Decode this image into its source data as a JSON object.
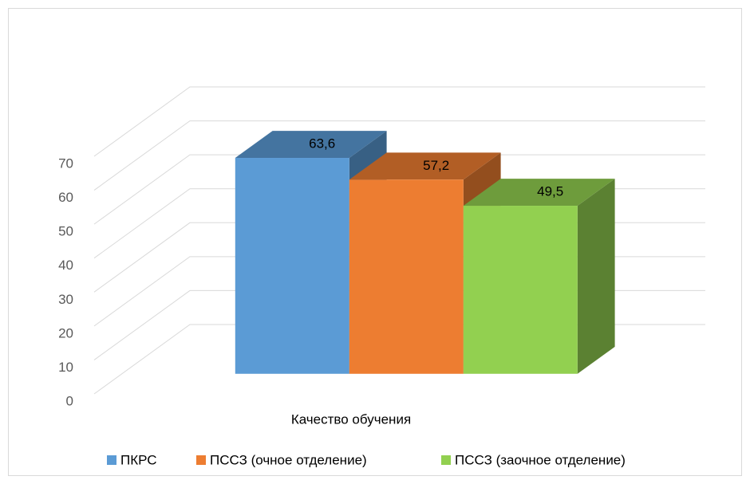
{
  "chart_data": {
    "type": "bar3d",
    "categories": [
      "Качество обучения"
    ],
    "series": [
      {
        "name": "ПКРС",
        "color": "#5b9bd5",
        "values": [
          63.6
        ],
        "value_labels": [
          "63,6"
        ]
      },
      {
        "name": "ПССЗ (очное отделение)",
        "color": "#ed7d31",
        "values": [
          57.2
        ],
        "value_labels": [
          "57,2"
        ]
      },
      {
        "name": "ПССЗ (заочное отделение)",
        "color": "#92d050",
        "values": [
          49.5
        ],
        "value_labels": [
          "49,5"
        ]
      }
    ],
    "ylim": [
      0,
      70
    ],
    "yticks": [
      0,
      10,
      20,
      30,
      40,
      50,
      60,
      70
    ],
    "grid": true,
    "legend": "bottom"
  }
}
